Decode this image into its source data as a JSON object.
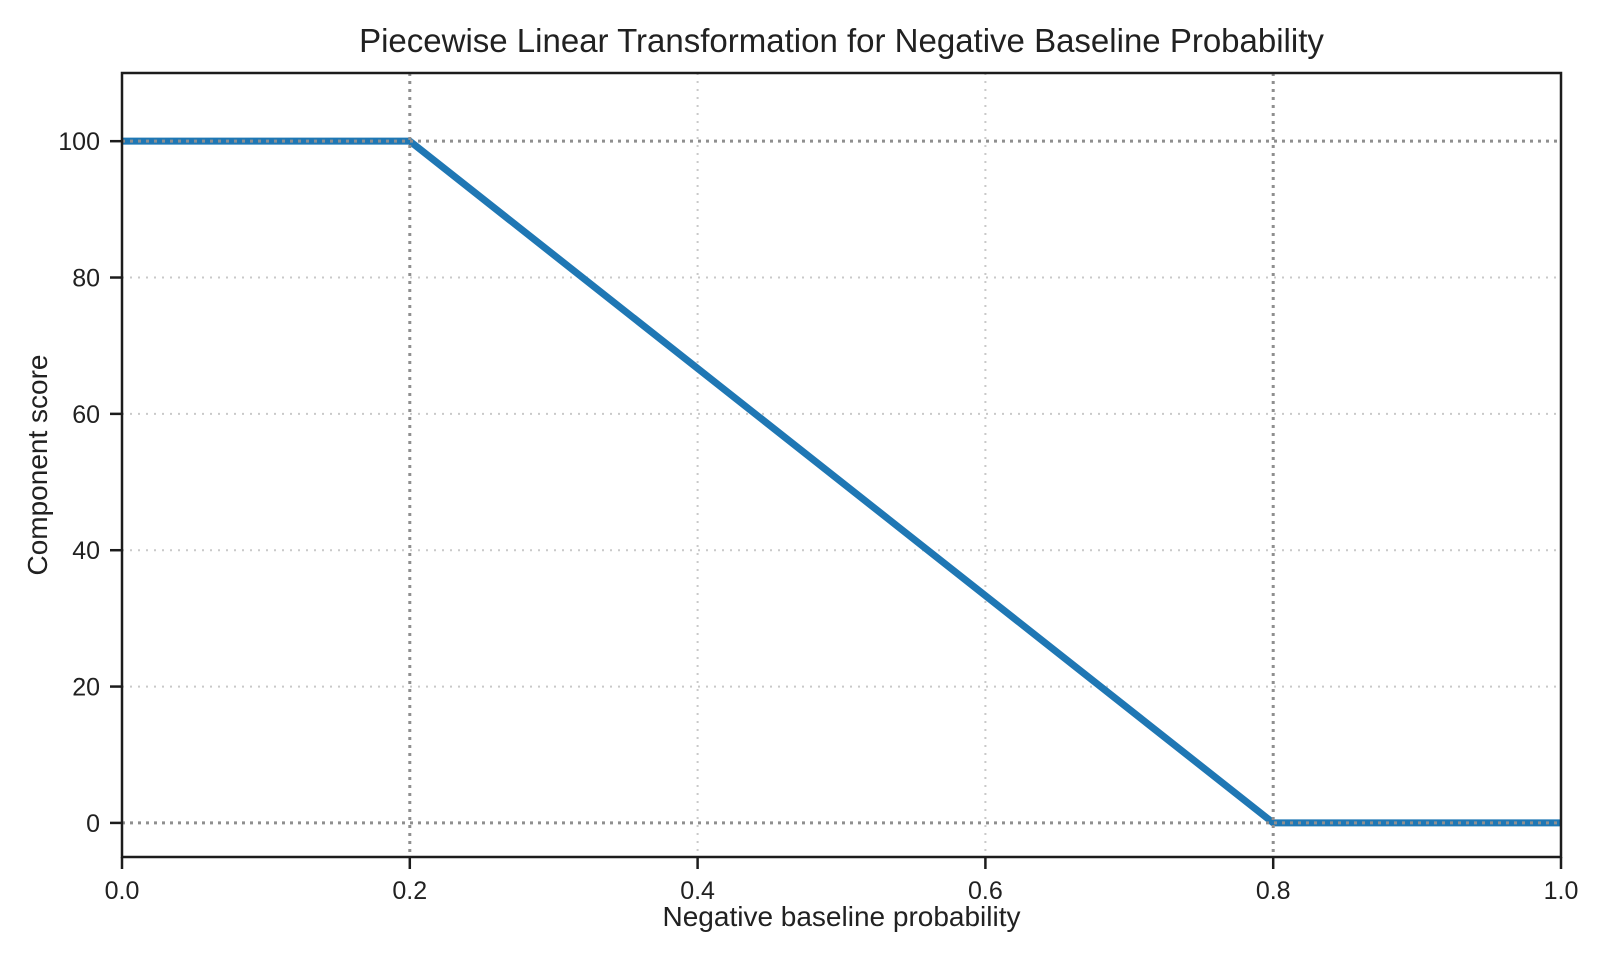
{
  "figure": {
    "background": "#ffffff"
  },
  "chart_data": {
    "type": "line",
    "title": "Piecewise Linear Transformation for Negative Baseline Probability",
    "xlabel": "Negative baseline probability",
    "ylabel": "Component score",
    "x": [
      0.0,
      0.2,
      0.8,
      1.0
    ],
    "y": [
      100,
      100,
      0,
      0
    ],
    "xlim": [
      0.0,
      1.0
    ],
    "ylim": [
      -5,
      110
    ],
    "xticks": [
      0.0,
      0.2,
      0.4,
      0.6,
      0.8,
      1.0
    ],
    "xtick_labels": [
      "0.0",
      "0.2",
      "0.4",
      "0.6",
      "0.8",
      "1.0"
    ],
    "yticks": [
      0,
      20,
      40,
      60,
      80,
      100
    ],
    "ytick_labels": [
      "0",
      "20",
      "40",
      "60",
      "80",
      "100"
    ],
    "grid": true,
    "legend": null,
    "reference_lines": {
      "x": [
        0.2,
        0.8
      ],
      "y": [
        0,
        100
      ]
    },
    "colors": {
      "line": "#1f77b4",
      "grid": "#c9c9c9",
      "reference": "#8f8f8f",
      "text": "#212121",
      "spine": "#1c1c1c"
    },
    "line_width": 7
  }
}
